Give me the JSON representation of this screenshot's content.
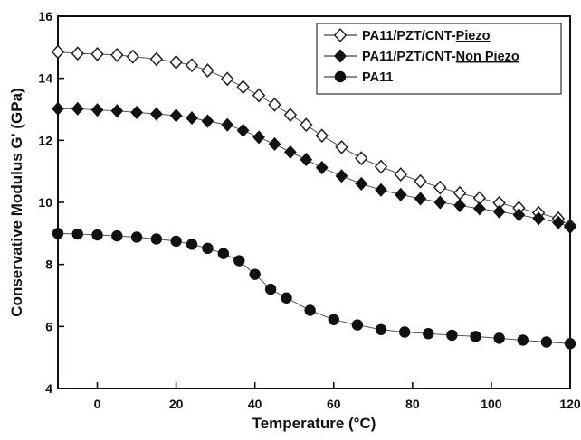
{
  "chart_data": {
    "type": "line",
    "xlabel": "Temperature (°C)",
    "ylabel": "Conservative Modulus G' (GPa)",
    "xlim": [
      -10,
      120
    ],
    "ylim": [
      4,
      16
    ],
    "x_ticks": [
      0,
      20,
      40,
      60,
      80,
      100,
      120
    ],
    "y_ticks": [
      4,
      6,
      8,
      10,
      12,
      14,
      16
    ],
    "grid": false,
    "legend_position": "top-right",
    "series": [
      {
        "name": "PA11/PZT/CNT-Piezo",
        "legend_prefix": "PA11/PZT/CNT-",
        "legend_emphasis": "Piezo",
        "marker": "open-diamond",
        "x": [
          -10,
          -5,
          0,
          5,
          9,
          15,
          20,
          24,
          28,
          33,
          37,
          41,
          45,
          49,
          53,
          57,
          62,
          67,
          72,
          77,
          82,
          87,
          92,
          97,
          102,
          107,
          112,
          117,
          120
        ],
        "y": [
          14.85,
          14.8,
          14.78,
          14.75,
          14.7,
          14.62,
          14.52,
          14.42,
          14.25,
          13.98,
          13.72,
          13.45,
          13.15,
          12.82,
          12.5,
          12.15,
          11.78,
          11.42,
          11.15,
          10.9,
          10.68,
          10.48,
          10.3,
          10.14,
          9.98,
          9.82,
          9.66,
          9.48,
          9.25
        ]
      },
      {
        "name": "PA11/PZT/CNT-Non Piezo",
        "legend_prefix": "PA11/PZT/CNT-",
        "legend_emphasis": "Non Piezo",
        "marker": "filled-diamond",
        "x": [
          -10,
          -5,
          0,
          5,
          10,
          15,
          20,
          24,
          28,
          33,
          37,
          41,
          45,
          49,
          53,
          57,
          62,
          67,
          72,
          77,
          82,
          87,
          92,
          97,
          102,
          107,
          112,
          117,
          120
        ],
        "y": [
          13.02,
          13.02,
          12.98,
          12.95,
          12.9,
          12.85,
          12.8,
          12.72,
          12.62,
          12.5,
          12.32,
          12.1,
          11.88,
          11.62,
          11.38,
          11.12,
          10.85,
          10.6,
          10.4,
          10.25,
          10.12,
          10.0,
          9.9,
          9.8,
          9.7,
          9.6,
          9.48,
          9.35,
          9.2
        ]
      },
      {
        "name": "PA11",
        "legend_prefix": "PA11",
        "legend_emphasis": "",
        "marker": "filled-circle",
        "x": [
          -10,
          -5,
          0,
          5,
          10,
          15,
          20,
          24,
          28,
          32,
          36,
          40,
          44,
          48,
          54,
          60,
          66,
          72,
          78,
          84,
          90,
          96,
          102,
          108,
          114,
          120
        ],
        "y": [
          9.0,
          8.98,
          8.95,
          8.92,
          8.88,
          8.82,
          8.75,
          8.65,
          8.52,
          8.35,
          8.12,
          7.68,
          7.2,
          6.92,
          6.52,
          6.22,
          6.05,
          5.9,
          5.82,
          5.77,
          5.72,
          5.68,
          5.62,
          5.56,
          5.5,
          5.45
        ]
      }
    ]
  }
}
